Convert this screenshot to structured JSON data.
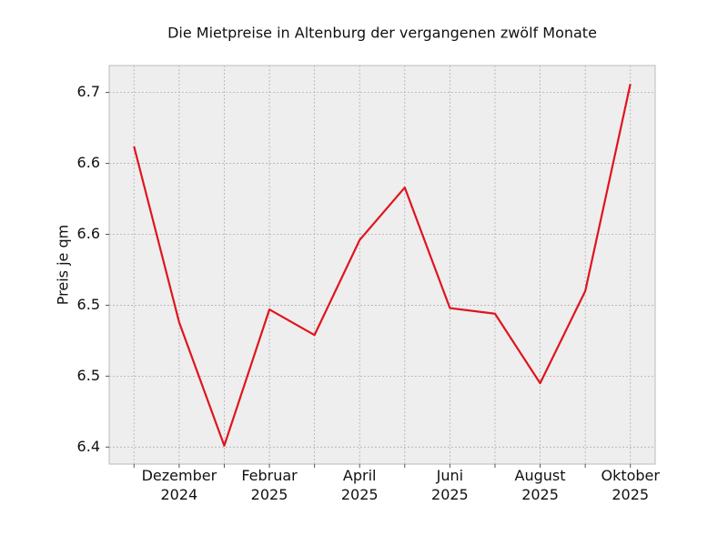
{
  "chart_data": {
    "type": "line",
    "title": "Die Mietpreise in Altenburg der vergangenen zwölf Monate",
    "y_label": "Preis je qm",
    "categories": [
      null,
      "Dezember 2024",
      null,
      "Februar 2025",
      null,
      "April 2025",
      null,
      "Juni 2025",
      null,
      "August 2025",
      null,
      "Oktober 2025"
    ],
    "series": [
      {
        "name": "Preis je qm",
        "color": "#e0141e",
        "values": [
          6.612,
          6.488,
          6.401,
          6.497,
          6.479,
          6.546,
          6.583,
          6.498,
          6.494,
          6.445,
          6.51,
          6.656
        ]
      }
    ],
    "ylim": [
      6.388,
      6.669
    ],
    "yticks": [
      6.4,
      {
        "value": 6.45,
        "label": "6.5"
      },
      6.5,
      {
        "value": 6.55,
        "label": "6.6"
      },
      6.6,
      {
        "value": 6.65,
        "label": "6.7"
      }
    ],
    "grid": true
  }
}
